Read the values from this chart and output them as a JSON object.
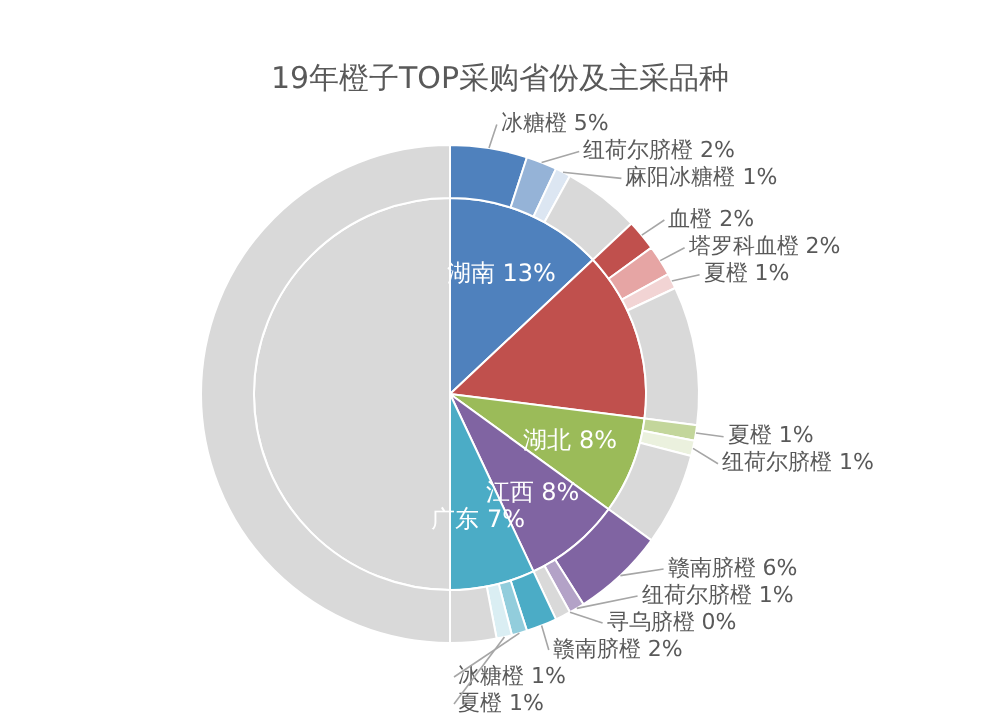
{
  "chart_data": [
    {
      "type": "pie",
      "title": "19年橙子TOP采购省份及主采品种",
      "categories": [
        "湖南",
        null,
        "湖北",
        "江西",
        "广东",
        null
      ],
      "values": [
        13,
        14,
        8,
        8,
        7,
        50
      ],
      "colors": [
        "#4f81bd",
        "#c0504d",
        "#9bbb59",
        "#8064a2",
        "#4bacc6",
        "#d9d9d9"
      ],
      "value_labels": [
        "13%",
        null,
        "8%",
        "8%",
        "7%",
        null
      ]
    },
    {
      "type": "donut",
      "categories": [
        "冰糖橙",
        "纽荷尔脐橙",
        "麻阳冰糖橙",
        null,
        "血橙",
        "塔罗科血橙",
        "夏橙",
        null,
        "夏橙",
        "纽荷尔脐橙",
        null,
        "赣南脐橙",
        "纽荷尔脐橙",
        "寻乌脐橙",
        null,
        "赣南脐橙",
        "冰糖橙",
        "夏橙",
        null,
        null
      ],
      "values": [
        5,
        2,
        1,
        5,
        2,
        2,
        1,
        9,
        1,
        1,
        6,
        6,
        1,
        0,
        1,
        2,
        1,
        1,
        3,
        50
      ],
      "colors": [
        "#4f81bd",
        "#95b3d7",
        "#dce6f2",
        "#d9d9d9",
        "#c0504d",
        "#e6a5a4",
        "#f2d4d4",
        "#d9d9d9",
        "#c3d69b",
        "#ebf1de",
        "#d9d9d9",
        "#8064a2",
        "#b3a2c7",
        "#e4dfec",
        "#d9d9d9",
        "#4bacc6",
        "#92cddc",
        "#daeef3",
        "#d9d9d9",
        "#d9d9d9"
      ],
      "value_labels": [
        "5%",
        "2%",
        "1%",
        null,
        "2%",
        "2%",
        "1%",
        null,
        "1%",
        "1%",
        null,
        "6%",
        "1%",
        "0%",
        null,
        "2%",
        "1%",
        "1%",
        null,
        null
      ]
    }
  ]
}
